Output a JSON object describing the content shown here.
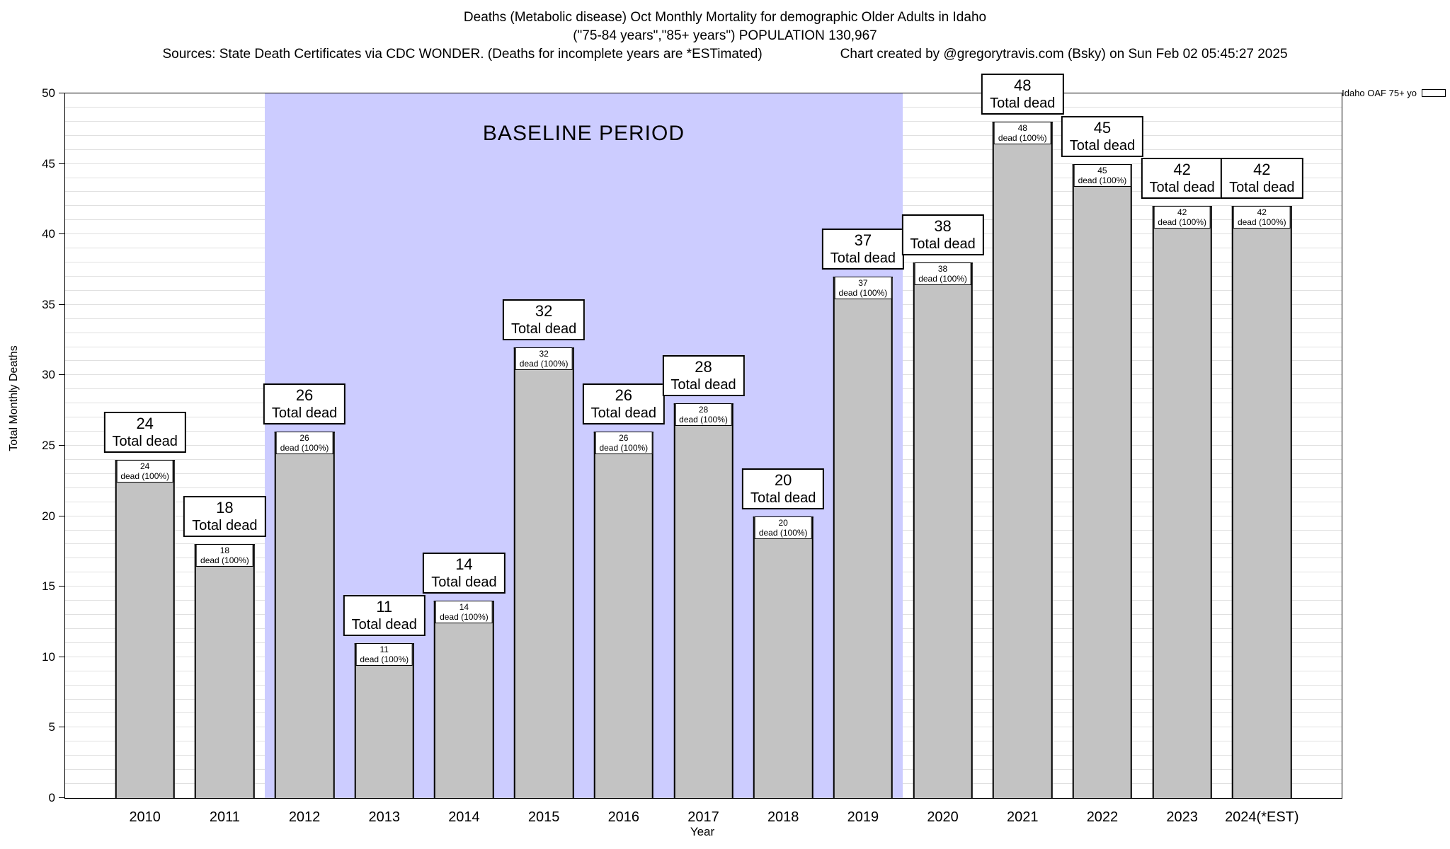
{
  "header": {
    "title_line1": "Deaths (Metabolic disease) Oct Monthly Mortality for demographic Older Adults in Idaho",
    "title_line2": "(\"75-84 years\",\"85+ years\") POPULATION 130,967",
    "sources": "Sources: State Death Certificates via CDC WONDER. (Deaths for incomplete years are *ESTimated)",
    "credit": "Chart created by @gregorytravis.com (Bsky) on Sun Feb 02 05:45:27 2025"
  },
  "legend": {
    "label": "Idaho OAF 75+ yo"
  },
  "chart_data": {
    "type": "bar",
    "title": "Deaths (Metabolic disease) Oct Monthly Mortality for demographic Older Adults in Idaho",
    "xlabel": "Year",
    "ylabel": "Total Monthly Deaths",
    "ylim": [
      0,
      50
    ],
    "ytick_step": 5,
    "grid": "horizontal minor lines every 1 unit",
    "legend_position": "top-right outside",
    "categories": [
      "2010",
      "2011",
      "2012",
      "2013",
      "2014",
      "2015",
      "2016",
      "2017",
      "2018",
      "2019",
      "2020",
      "2021",
      "2022",
      "2023",
      "2024(*EST)"
    ],
    "values": [
      24,
      18,
      26,
      11,
      14,
      32,
      26,
      28,
      20,
      37,
      38,
      48,
      45,
      42,
      42
    ],
    "labels": {
      "total_suffix": "Total dead",
      "inner_suffix": "dead (100%)"
    },
    "baseline": {
      "label": "BASELINE PERIOD",
      "start_category": "2012",
      "end_category": "2019",
      "color": "#ccccff"
    },
    "bar_color": "#c3c3c3"
  }
}
